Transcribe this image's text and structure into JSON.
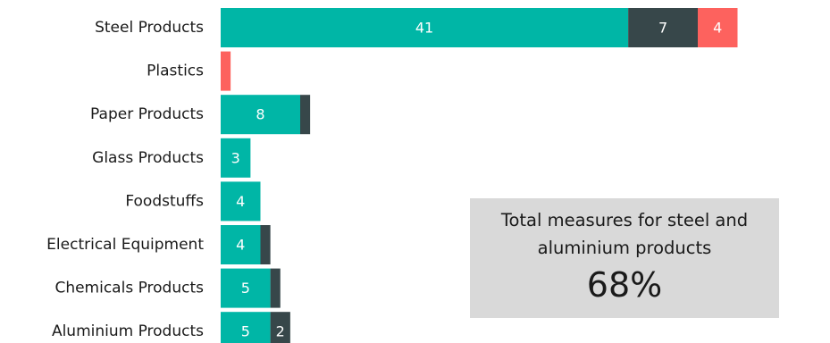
{
  "chart_data": {
    "type": "bar",
    "orientation": "horizontal",
    "stacked": true,
    "categories": [
      "Steel Products",
      "Plastics",
      "Paper Products",
      "Glass Products",
      "Foodstuffs",
      "Electrical Equipment",
      "Chemicals Products",
      "Aluminium Products"
    ],
    "series": [
      {
        "color": "#00b6a6",
        "values": [
          41,
          0,
          8,
          3,
          4,
          4,
          5,
          5
        ]
      },
      {
        "color": "#37474a",
        "values": [
          7,
          0,
          1,
          0,
          0,
          1,
          1,
          2
        ]
      },
      {
        "color": "#fd625e",
        "values": [
          4,
          1,
          0,
          0,
          0,
          0,
          0,
          0
        ]
      }
    ],
    "xlim": [
      0,
      52
    ],
    "grid": false,
    "legend": "none"
  },
  "callout": {
    "text": "Total measures for steel and aluminium products",
    "value": "68%"
  }
}
